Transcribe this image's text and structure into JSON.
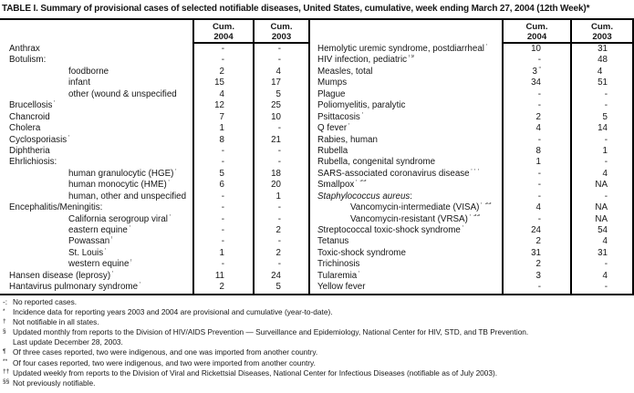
{
  "title": "TABLE I. Summary of provisional cases of selected notifiable diseases, United States, cumulative, week ending March 27, 2004 (12th Week)*",
  "table": {
    "header": {
      "cum": "Cum.",
      "y2004": "2004",
      "y2003": "2003"
    },
    "left_rows": [
      {
        "label": "Anthrax",
        "v2004": "-",
        "v2003": "-"
      },
      {
        "label": "Botulism:",
        "v2004": "-",
        "v2003": "-"
      },
      {
        "label": "foodborne",
        "indent": 1,
        "v2004": "2",
        "v2003": "4"
      },
      {
        "label": "infant",
        "indent": 1,
        "v2004": "15",
        "v2003": "17"
      },
      {
        "label": "other (wound & unspecified",
        "indent": 1,
        "v2004": "4",
        "v2003": "5"
      },
      {
        "label": "Brucellosis",
        "sup": "†",
        "v2004": "12",
        "v2003": "25"
      },
      {
        "label": "Chancroid",
        "v2004": "7",
        "v2003": "10"
      },
      {
        "label": "Cholera",
        "v2004": "1",
        "v2003": "-"
      },
      {
        "label": "Cyclosporiasis",
        "sup": "†",
        "v2004": "8",
        "v2003": "21"
      },
      {
        "label": "Diphtheria",
        "v2004": "-",
        "v2003": "-"
      },
      {
        "label": "Ehrlichiosis:",
        "v2004": "-",
        "v2003": "-"
      },
      {
        "label": "human granulocytic (HGE)",
        "sup": "†",
        "indent": 1,
        "v2004": "5",
        "v2003": "18"
      },
      {
        "label": "human monocytic (HME)",
        "sup": "†",
        "indent": 1,
        "v2004": "6",
        "v2003": "20"
      },
      {
        "label": "human, other and unspecified",
        "indent": 1,
        "v2004": "-",
        "v2003": "1"
      },
      {
        "label": "Encephalitis/Meningitis:",
        "v2004": "-",
        "v2003": "-"
      },
      {
        "label": "California serogroup viral",
        "sup": "†",
        "indent": 1,
        "v2004": "-",
        "v2003": "-"
      },
      {
        "label": "eastern equine",
        "sup": "†",
        "indent": 1,
        "v2004": "-",
        "v2003": "2"
      },
      {
        "label": "Powassan",
        "sup": "†",
        "indent": 1,
        "v2004": "-",
        "v2003": "-"
      },
      {
        "label": "St. Louis",
        "sup": "†",
        "indent": 1,
        "v2004": "1",
        "v2003": "2"
      },
      {
        "label": "western equine",
        "sup": "†",
        "indent": 1,
        "v2004": "-",
        "v2003": "-"
      },
      {
        "label": "Hansen disease (leprosy)",
        "sup": "†",
        "v2004": "11",
        "v2003": "24"
      },
      {
        "label": "Hantavirus pulmonary syndrome",
        "sup": "†",
        "v2004": "2",
        "v2003": "5"
      }
    ],
    "right_rows": [
      {
        "label": "Hemolytic uremic syndrome, postdiarrheal",
        "sup": "†",
        "v2004": "10",
        "v2003": "31"
      },
      {
        "label": "HIV infection, pediatric",
        "sup": "†§",
        "v2004": "-",
        "v2003": "48"
      },
      {
        "label": "Measles, total",
        "v2004": "3",
        "v2004_sup": "¶",
        "v2003": "4",
        "v2003_sup": "**"
      },
      {
        "label": "Mumps",
        "v2004": "34",
        "v2003": "51"
      },
      {
        "label": "Plague",
        "v2004": "-",
        "v2003": "-"
      },
      {
        "label": "Poliomyelitis, paralytic",
        "v2004": "-",
        "v2003": "-"
      },
      {
        "label": "Psittacosis",
        "sup": "†",
        "v2004": "2",
        "v2003": "5"
      },
      {
        "label": "Q fever",
        "sup": "†",
        "v2004": "4",
        "v2003": "14"
      },
      {
        "label": "Rabies, human",
        "v2004": "-",
        "v2003": "-"
      },
      {
        "label": "Rubella",
        "v2004": "8",
        "v2003": "1"
      },
      {
        "label": "Rubella, congenital syndrome",
        "v2004": "1",
        "v2003": "-"
      },
      {
        "label": "SARS-associated coronavirus disease",
        "sup": "†††",
        "v2004": "-",
        "v2003": "4"
      },
      {
        "label": "Smallpox",
        "sup": "† §§",
        "v2004": "-",
        "v2003": "NA"
      },
      {
        "italic": "Staphylococcus aureus",
        "label": ":",
        "v2004": "-",
        "v2003": "-"
      },
      {
        "label": "Vancomycin-intermediate (VISA)",
        "sup": "† §§",
        "indent": 1,
        "v2004": "4",
        "v2003": "NA"
      },
      {
        "label": "Vancomycin-resistant (VRSA)",
        "sup": "† §§",
        "indent": 1,
        "v2004": "-",
        "v2003": "NA"
      },
      {
        "italic": "S",
        "label": "treptococcal toxic-shock syndrome",
        "sup": "†",
        "v2004": "24",
        "v2003": "54"
      },
      {
        "label": "Tetanus",
        "v2004": "2",
        "v2003": "4"
      },
      {
        "label": "Toxic-shock syndrome",
        "v2004": "31",
        "v2003": "31"
      },
      {
        "label": "Trichinosis",
        "v2004": "2",
        "v2003": "-"
      },
      {
        "label": "Tularemia",
        "sup": "†",
        "v2004": "3",
        "v2003": "4"
      },
      {
        "label": "Yellow fever",
        "v2004": "-",
        "v2003": "-"
      }
    ]
  },
  "footnotes": [
    {
      "marker": "-:",
      "sup": false,
      "text": "No reported cases."
    },
    {
      "marker": "*",
      "sup": true,
      "text": "Incidence data for reporting years 2003 and 2004 are provisional and cumulative (year-to-date)."
    },
    {
      "marker": "†",
      "sup": true,
      "text": "Not notifiable in all states."
    },
    {
      "marker": "§",
      "sup": true,
      "text": "Updated monthly from reports to the Division of HIV/AIDS Prevention — Surveillance and Epidemiology, National Center for HIV, STD, and TB Prevention."
    },
    {
      "marker": "",
      "sup": false,
      "text": "Last update December 28, 2003."
    },
    {
      "marker": "¶",
      "sup": true,
      "text": "Of three cases reported, two were indigenous, and one was imported from another country."
    },
    {
      "marker": "**",
      "sup": true,
      "text": "Of four cases reported, two were indigenous, and two were imported from another country."
    },
    {
      "marker": "††",
      "sup": true,
      "text": "Updated weekly from reports to the Division of Viral and Rickettsial Diseases, National Center for Infectious Diseases (notifiable as of July 2003)."
    },
    {
      "marker": "§§",
      "sup": true,
      "text": "Not previously notifiable."
    }
  ]
}
